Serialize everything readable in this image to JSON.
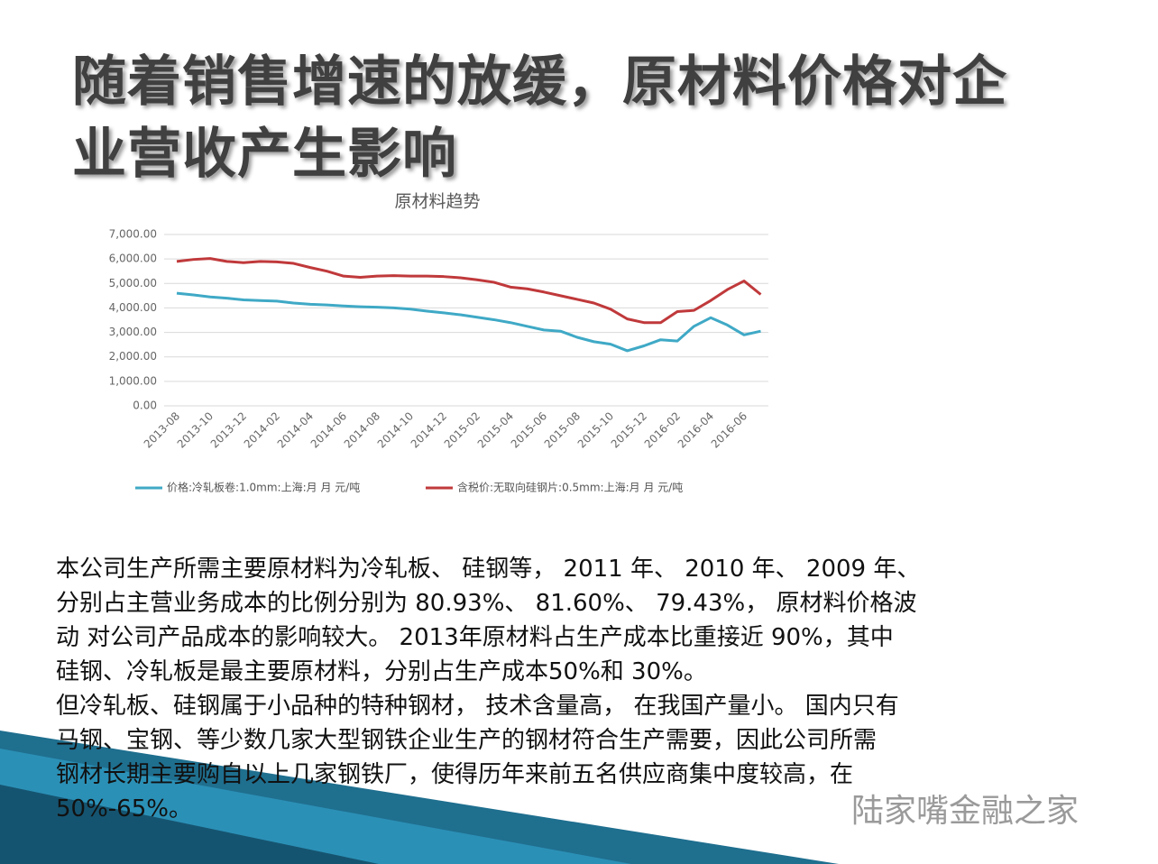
{
  "title_lines": [
    "随着销售增速的放缓，原材料价格对企",
    "业营收产生影响"
  ],
  "chart_data": {
    "type": "line",
    "title": "原材料趋势",
    "categories": [
      "2013-08",
      null,
      "2013-10",
      null,
      "2013-12",
      null,
      "2014-02",
      null,
      "2014-04",
      null,
      "2014-06",
      null,
      "2014-08",
      null,
      "2014-10",
      null,
      "2014-12",
      null,
      "2015-02",
      null,
      "2015-04",
      null,
      "2015-06",
      null,
      "2015-08",
      null,
      "2015-10",
      null,
      "2015-12",
      null,
      "2016-02",
      null,
      "2016-04",
      null,
      "2016-06",
      null
    ],
    "series": [
      {
        "name": "价格:冷轧板卷:1.0mm:上海:月 月 元/吨",
        "color": "#3fa9c6",
        "values": [
          4600,
          4530,
          4450,
          4400,
          4330,
          4300,
          4280,
          4200,
          4150,
          4120,
          4080,
          4050,
          4030,
          4000,
          3950,
          3870,
          3800,
          3720,
          3620,
          3520,
          3400,
          3250,
          3100,
          3050,
          2800,
          2620,
          2520,
          2250,
          2450,
          2700,
          2650,
          3250,
          3600,
          3300,
          2900,
          3050
        ]
      },
      {
        "name": "含税价:无取向硅钢片:0.5mm:上海:月 月 元/吨",
        "color": "#c0393b",
        "values": [
          5900,
          5980,
          6020,
          5900,
          5850,
          5900,
          5880,
          5820,
          5650,
          5500,
          5300,
          5250,
          5300,
          5320,
          5300,
          5300,
          5280,
          5230,
          5150,
          5050,
          4850,
          4780,
          4650,
          4500,
          4350,
          4200,
          3950,
          3550,
          3400,
          3400,
          3850,
          3900,
          4300,
          4750,
          5100,
          4550
        ]
      }
    ],
    "ylim": [
      0,
      7000
    ],
    "yticks": [
      {
        "value": 0,
        "label": "0.00"
      },
      {
        "value": 1000,
        "label": "1,000.00"
      },
      {
        "value": 2000,
        "label": "2,000.00"
      },
      {
        "value": 3000,
        "label": "3,000.00"
      },
      {
        "value": 4000,
        "label": "4,000.00"
      },
      {
        "value": 5000,
        "label": "5,000.00"
      },
      {
        "value": 6000,
        "label": "6,000.00"
      },
      {
        "value": 7000,
        "label": "7,000.00"
      }
    ],
    "grid": true,
    "legend": "bottom"
  },
  "body_lines": [
    "本公司生产所需主要原材料为冷轧板、 硅钢等， 2011 年、 2010 年、 2009 年、",
    "分别占主营业务成本的比例分别为 80.93%、 81.60%、 79.43%， 原材料价格波",
    "动 对公司产品成本的影响较大。 2013年原材料占生产成本比重接近 90%，其中",
    "硅钢、冷轧板是最主要原材料，分别占生产成本50%和 30%。",
    "但冷轧板、硅钢属于小品种的特种钢材， 技术含量高， 在我国产量小。 国内只有",
    "马钢、宝钢、等少数几家大型钢铁企业生产的钢材符合生产需要，因此公司所需",
    "钢材长期主要购自以上几家钢铁厂，使得历年来前五名供应商集中度较高，在",
    "50%-65%。"
  ],
  "watermark": "陆家嘴金融之家"
}
